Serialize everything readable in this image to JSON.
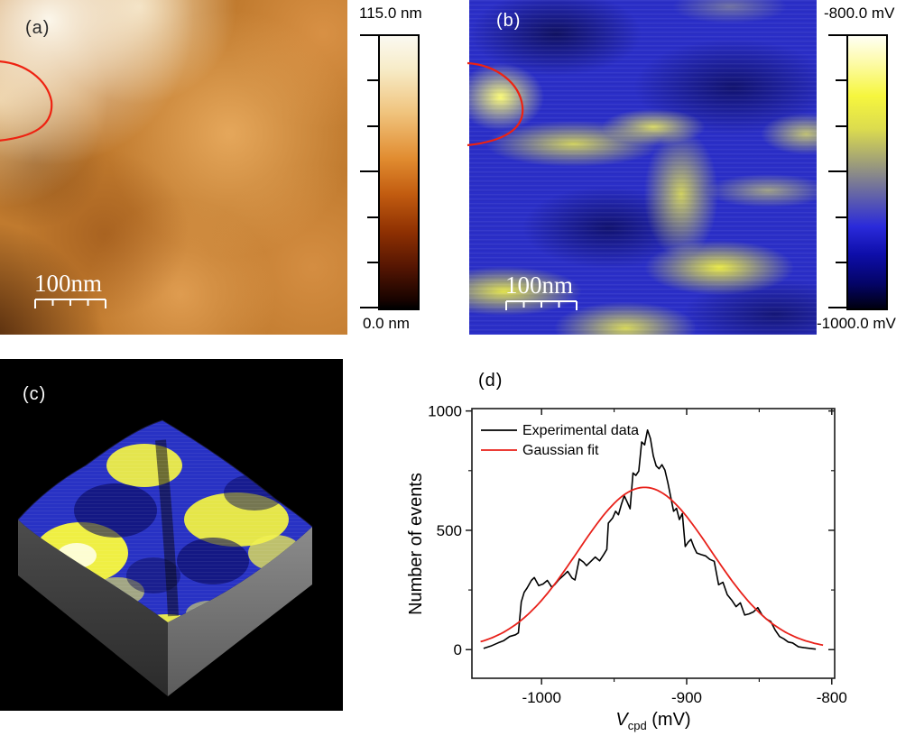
{
  "figure": {
    "panels": {
      "a": {
        "label": "(a)",
        "scalebar_text": "100nm",
        "colorbar": {
          "max_label": "115.0 nm",
          "min_label": "0.0 nm"
        }
      },
      "b": {
        "label": "(b)",
        "scalebar_text": "100nm",
        "colorbar": {
          "max_label": "-800.0 mV",
          "min_label": "-1000.0 mV"
        }
      },
      "c": {
        "label": "(c)"
      },
      "d": {
        "label": "(d)"
      }
    },
    "colors": {
      "contour_red": "#ee2211",
      "experimental_line": "#000000",
      "gaussian_line": "#e8211a"
    }
  },
  "chart_data": {
    "type": "line",
    "title": "",
    "ylabel": "Number of events",
    "xlabel_parts": {
      "main": "V",
      "sub": "cpd",
      "unit": " (mV)"
    },
    "xlim": [
      -1048,
      -798
    ],
    "ylim": [
      -120,
      1010
    ],
    "x_major_ticks": [
      -1000,
      -900,
      -800
    ],
    "x_minor_ticks": [
      -950,
      -850
    ],
    "y_major_ticks": [
      0,
      500,
      1000
    ],
    "y_minor_ticks": [
      250,
      750
    ],
    "grid": false,
    "legend_position": "top-left",
    "series": [
      {
        "name": "Experimental data",
        "color": "#000000",
        "points": [
          [
            -1040,
            5
          ],
          [
            -1035,
            15
          ],
          [
            -1030,
            28
          ],
          [
            -1026,
            38
          ],
          [
            -1022,
            55
          ],
          [
            -1018,
            62
          ],
          [
            -1016,
            70
          ],
          [
            -1014,
            200
          ],
          [
            -1012,
            240
          ],
          [
            -1010,
            258
          ],
          [
            -1007,
            290
          ],
          [
            -1005,
            302
          ],
          [
            -1002,
            268
          ],
          [
            -999,
            275
          ],
          [
            -996,
            290
          ],
          [
            -993,
            262
          ],
          [
            -991,
            272
          ],
          [
            -988,
            294
          ],
          [
            -985,
            310
          ],
          [
            -982,
            328
          ],
          [
            -979,
            300
          ],
          [
            -977,
            292
          ],
          [
            -974,
            380
          ],
          [
            -971,
            366
          ],
          [
            -969,
            352
          ],
          [
            -966,
            370
          ],
          [
            -963,
            388
          ],
          [
            -960,
            372
          ],
          [
            -957,
            400
          ],
          [
            -955,
            420
          ],
          [
            -954,
            530
          ],
          [
            -951,
            552
          ],
          [
            -949,
            580
          ],
          [
            -947,
            565
          ],
          [
            -945,
            608
          ],
          [
            -943,
            645
          ],
          [
            -941,
            618
          ],
          [
            -939,
            590
          ],
          [
            -937,
            740
          ],
          [
            -935,
            730
          ],
          [
            -933,
            748
          ],
          [
            -931,
            870
          ],
          [
            -929,
            858
          ],
          [
            -927,
            920
          ],
          [
            -925,
            885
          ],
          [
            -923,
            812
          ],
          [
            -921,
            770
          ],
          [
            -919,
            758
          ],
          [
            -917,
            775
          ],
          [
            -915,
            752
          ],
          [
            -913,
            700
          ],
          [
            -911,
            640
          ],
          [
            -909,
            580
          ],
          [
            -907,
            592
          ],
          [
            -905,
            545
          ],
          [
            -903,
            570
          ],
          [
            -901,
            432
          ],
          [
            -899,
            450
          ],
          [
            -897,
            462
          ],
          [
            -895,
            430
          ],
          [
            -893,
            405
          ],
          [
            -890,
            398
          ],
          [
            -887,
            393
          ],
          [
            -884,
            378
          ],
          [
            -881,
            370
          ],
          [
            -878,
            272
          ],
          [
            -875,
            282
          ],
          [
            -872,
            230
          ],
          [
            -869,
            208
          ],
          [
            -866,
            180
          ],
          [
            -863,
            196
          ],
          [
            -860,
            145
          ],
          [
            -857,
            150
          ],
          [
            -854,
            158
          ],
          [
            -851,
            176
          ],
          [
            -848,
            145
          ],
          [
            -845,
            128
          ],
          [
            -842,
            118
          ],
          [
            -839,
            82
          ],
          [
            -836,
            55
          ],
          [
            -833,
            45
          ],
          [
            -830,
            32
          ],
          [
            -827,
            28
          ],
          [
            -823,
            12
          ],
          [
            -819,
            8
          ],
          [
            -815,
            5
          ],
          [
            -811,
            2
          ]
        ]
      },
      {
        "name": "Gaussian fit",
        "color": "#e8211a",
        "fit": {
          "amplitude": 680,
          "center": -929,
          "sigma": 46,
          "x_start": -1042,
          "x_end": -806
        }
      }
    ]
  }
}
